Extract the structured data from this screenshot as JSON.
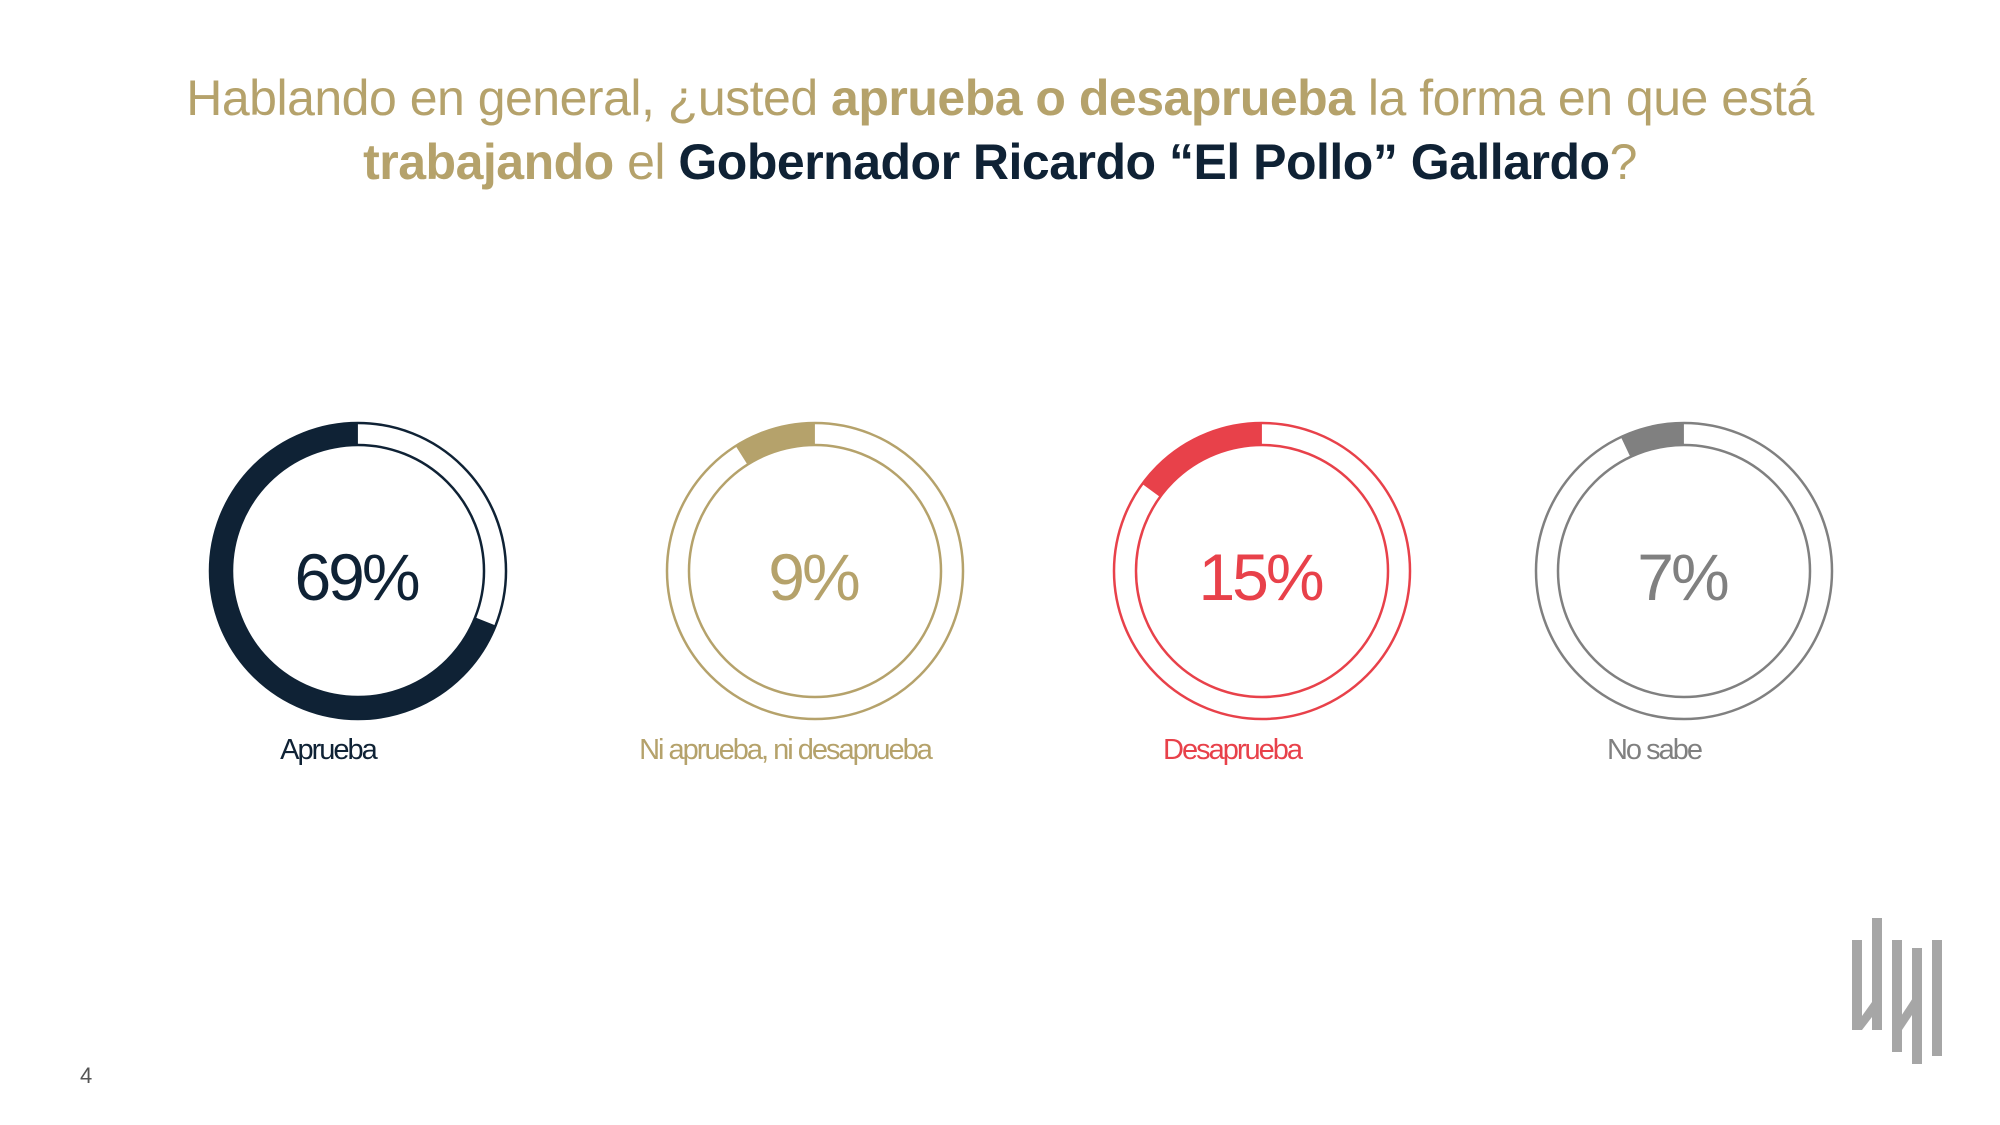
{
  "title": {
    "part1": "Hablando en general, ¿usted ",
    "part2": "aprueba o desaprueba",
    "part3": " la forma en que está ",
    "part4": "trabajando",
    "part5": " el ",
    "part6": "Gobernador Ricardo “El Pollo” Gallardo",
    "part7": "?"
  },
  "page_number": "4",
  "colors": {
    "title_gold": "#b5a26b",
    "navy": "#0f2235",
    "gold": "#b5a26b",
    "red": "#e8414a",
    "gray": "#808080"
  },
  "logo_icon": "brand-logo-icon",
  "chart_data": {
    "type": "pie",
    "style": "donut",
    "title": "Hablando en general, ¿usted aprueba o desaprueba la forma en que está trabajando el Gobernador Ricardo “El Pollo” Gallardo?",
    "unit": "%",
    "series": [
      {
        "name": "Aprueba",
        "value": 69,
        "label": "69%",
        "color": "#0f2235"
      },
      {
        "name": "Ni aprueba, ni desaprueba",
        "value": 9,
        "label": "9%",
        "color": "#b5a26b"
      },
      {
        "name": "Desaprueba",
        "value": 15,
        "label": "15%",
        "color": "#e8414a"
      },
      {
        "name": "No sabe",
        "value": 7,
        "label": "7%",
        "color": "#808080"
      }
    ]
  }
}
